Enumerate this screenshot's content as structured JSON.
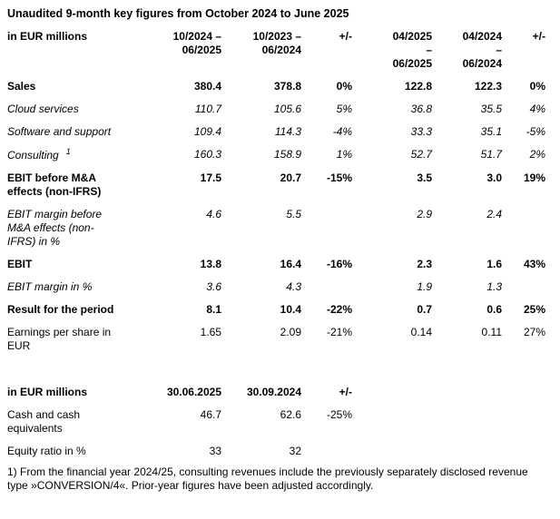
{
  "title": "Unaudited 9-month key figures from October 2024 to June 2025",
  "table1": {
    "header": {
      "label": "in EUR millions",
      "cols": [
        "10/2024 –\n06/2025",
        "10/2023 –\n06/2024",
        "+/-",
        "04/2025\n–\n06/2025",
        "04/2024\n–\n06/2024",
        "+/-"
      ]
    },
    "rows": [
      {
        "label": "Sales",
        "values": [
          "380.4",
          "378.8",
          "0%",
          "122.8",
          "122.3",
          "0%"
        ]
      },
      {
        "label": "Cloud services",
        "values": [
          "110.7",
          "105.6",
          "5%",
          "36.8",
          "35.5",
          "4%"
        ]
      },
      {
        "label": "Software and support",
        "values": [
          "109.4",
          "114.3",
          "-4%",
          "33.3",
          "35.1",
          "-5%"
        ]
      },
      {
        "label": "Consulting",
        "sup": "1",
        "values": [
          "160.3",
          "158.9",
          "1%",
          "52.7",
          "51.7",
          "2%"
        ]
      },
      {
        "label": "EBIT before M&A effects (non-IFRS)",
        "values": [
          "17.5",
          "20.7",
          "-15%",
          "3.5",
          "3.0",
          "19%"
        ]
      },
      {
        "label": "EBIT margin before M&A effects (non-IFRS) in %",
        "values": [
          "4.6",
          "5.5",
          "",
          "2.9",
          "2.4",
          ""
        ]
      },
      {
        "label": "EBIT",
        "values": [
          "13.8",
          "16.4",
          "-16%",
          "2.3",
          "1.6",
          "43%"
        ]
      },
      {
        "label": "EBIT margin in %",
        "values": [
          "3.6",
          "4.3",
          "",
          "1.9",
          "1.3",
          ""
        ]
      },
      {
        "label": "Result for the period",
        "values": [
          "8.1",
          "10.4",
          "-22%",
          "0.7",
          "0.6",
          "25%"
        ]
      },
      {
        "label": "Earnings per share in EUR",
        "values": [
          "1.65",
          "2.09",
          "-21%",
          "0.14",
          "0.11",
          "27%"
        ]
      }
    ]
  },
  "table2": {
    "header": {
      "label": "in EUR millions",
      "cols": [
        "30.06.2025",
        "30.09.2024",
        "+/-"
      ]
    },
    "rows": [
      {
        "label": "Cash and cash equivalents",
        "values": [
          "46.7",
          "62.6",
          "-25%"
        ]
      },
      {
        "label": "Equity ratio in %",
        "values": [
          "33",
          "32",
          ""
        ]
      }
    ]
  },
  "footnote": "1) From the financial year 2024/25, consulting revenues include the previously separately disclosed revenue type »CONVERSION/4«. Prior-year figures have been adjusted accordingly."
}
